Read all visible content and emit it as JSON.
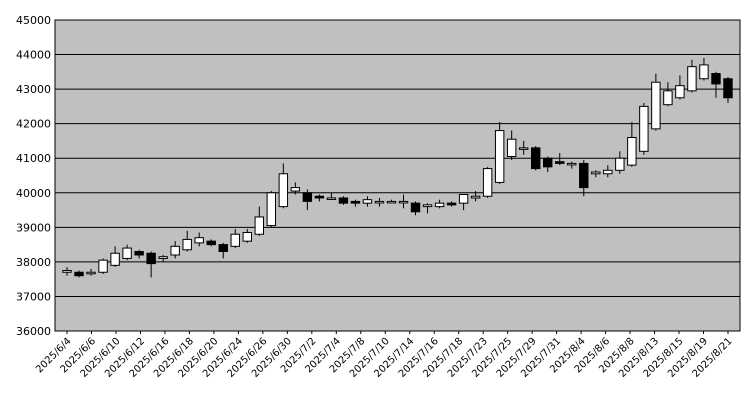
{
  "chart_data": {
    "type": "candlestick",
    "title": "",
    "xlabel": "",
    "ylabel": "",
    "ylim": [
      36000,
      45000
    ],
    "y_ticks": [
      36000,
      37000,
      38000,
      39000,
      40000,
      41000,
      42000,
      43000,
      44000,
      45000
    ],
    "grid": "horizontal",
    "legend": "none",
    "colors": {
      "plot_background": "#c0c0c0",
      "up_body": "#ffffff",
      "down_body": "#000000",
      "wick": "#000000",
      "gridline": "#000000"
    },
    "x_tick_labels": [
      "2025/6/4",
      "2025/6/6",
      "2025/6/10",
      "2025/6/12",
      "2025/6/16",
      "2025/6/18",
      "2025/6/20",
      "2025/6/24",
      "2025/6/26",
      "2025/6/30",
      "2025/7/2",
      "2025/7/4",
      "2025/7/8",
      "2025/7/10",
      "2025/7/14",
      "2025/7/16",
      "2025/7/18",
      "2025/7/23",
      "2025/7/25",
      "2025/7/29",
      "2025/7/31",
      "2025/8/4",
      "2025/8/6",
      "2025/8/8",
      "2025/8/13",
      "2025/8/15",
      "2025/8/19",
      "2025/8/21"
    ],
    "candles": [
      {
        "open": 37700,
        "high": 37850,
        "low": 37600,
        "close": 37750
      },
      {
        "open": 37700,
        "high": 37750,
        "low": 37550,
        "close": 37600
      },
      {
        "open": 37700,
        "high": 37800,
        "low": 37600,
        "close": 37700
      },
      {
        "open": 37700,
        "high": 38100,
        "low": 37650,
        "close": 38050
      },
      {
        "open": 37900,
        "high": 38450,
        "low": 37850,
        "close": 38250
      },
      {
        "open": 38100,
        "high": 38500,
        "low": 38050,
        "close": 38400
      },
      {
        "open": 38300,
        "high": 38350,
        "low": 38100,
        "close": 38200
      },
      {
        "open": 38250,
        "high": 38300,
        "low": 37550,
        "close": 37950
      },
      {
        "open": 38100,
        "high": 38200,
        "low": 38000,
        "close": 38150
      },
      {
        "open": 38200,
        "high": 38600,
        "low": 38100,
        "close": 38450
      },
      {
        "open": 38350,
        "high": 38900,
        "low": 38300,
        "close": 38650
      },
      {
        "open": 38550,
        "high": 38850,
        "low": 38450,
        "close": 38700
      },
      {
        "open": 38600,
        "high": 38650,
        "low": 38450,
        "close": 38500
      },
      {
        "open": 38500,
        "high": 38550,
        "low": 38100,
        "close": 38300
      },
      {
        "open": 38450,
        "high": 38950,
        "low": 38400,
        "close": 38800
      },
      {
        "open": 38600,
        "high": 38950,
        "low": 38550,
        "close": 38850
      },
      {
        "open": 38800,
        "high": 39600,
        "low": 38750,
        "close": 39300
      },
      {
        "open": 39050,
        "high": 40050,
        "low": 39000,
        "close": 40000
      },
      {
        "open": 39600,
        "high": 40850,
        "low": 39550,
        "close": 40550
      },
      {
        "open": 40050,
        "high": 40300,
        "low": 39950,
        "close": 40150
      },
      {
        "open": 40000,
        "high": 40100,
        "low": 39500,
        "close": 39750
      },
      {
        "open": 39900,
        "high": 39950,
        "low": 39750,
        "close": 39850
      },
      {
        "open": 39850,
        "high": 40000,
        "low": 39800,
        "close": 39850
      },
      {
        "open": 39850,
        "high": 39900,
        "low": 39650,
        "close": 39700
      },
      {
        "open": 39750,
        "high": 39800,
        "low": 39600,
        "close": 39700
      },
      {
        "open": 39700,
        "high": 39900,
        "low": 39600,
        "close": 39800
      },
      {
        "open": 39750,
        "high": 39850,
        "low": 39600,
        "close": 39750
      },
      {
        "open": 39750,
        "high": 39800,
        "low": 39700,
        "close": 39750
      },
      {
        "open": 39750,
        "high": 39950,
        "low": 39550,
        "close": 39750
      },
      {
        "open": 39700,
        "high": 39750,
        "low": 39350,
        "close": 39450
      },
      {
        "open": 39600,
        "high": 39700,
        "low": 39400,
        "close": 39650
      },
      {
        "open": 39600,
        "high": 39800,
        "low": 39550,
        "close": 39700
      },
      {
        "open": 39700,
        "high": 39750,
        "low": 39600,
        "close": 39650
      },
      {
        "open": 39700,
        "high": 39950,
        "low": 39500,
        "close": 39950
      },
      {
        "open": 39850,
        "high": 40050,
        "low": 39750,
        "close": 39900
      },
      {
        "open": 39900,
        "high": 40750,
        "low": 39850,
        "close": 40700
      },
      {
        "open": 40300,
        "high": 42050,
        "low": 40250,
        "close": 41800
      },
      {
        "open": 41050,
        "high": 41800,
        "low": 40950,
        "close": 41550
      },
      {
        "open": 41300,
        "high": 41500,
        "low": 41100,
        "close": 41300
      },
      {
        "open": 41300,
        "high": 41350,
        "low": 40650,
        "close": 40700
      },
      {
        "open": 41000,
        "high": 41050,
        "low": 40600,
        "close": 40750
      },
      {
        "open": 40900,
        "high": 41150,
        "low": 40800,
        "close": 40850
      },
      {
        "open": 40850,
        "high": 40900,
        "low": 40700,
        "close": 40850
      },
      {
        "open": 40850,
        "high": 40950,
        "low": 39900,
        "close": 40150
      },
      {
        "open": 40550,
        "high": 40650,
        "low": 40450,
        "close": 40600
      },
      {
        "open": 40550,
        "high": 40800,
        "low": 40450,
        "close": 40650
      },
      {
        "open": 40650,
        "high": 41200,
        "low": 40550,
        "close": 41000
      },
      {
        "open": 40800,
        "high": 42050,
        "low": 40750,
        "close": 41600
      },
      {
        "open": 41200,
        "high": 42600,
        "low": 41100,
        "close": 42500
      },
      {
        "open": 41850,
        "high": 43450,
        "low": 41800,
        "close": 43200
      },
      {
        "open": 42550,
        "high": 43200,
        "low": 42500,
        "close": 42950
      },
      {
        "open": 42750,
        "high": 43400,
        "low": 42700,
        "close": 43100
      },
      {
        "open": 42950,
        "high": 43850,
        "low": 42900,
        "close": 43650
      },
      {
        "open": 43300,
        "high": 43900,
        "low": 43250,
        "close": 43700
      },
      {
        "open": 43450,
        "high": 43500,
        "low": 42750,
        "close": 43150
      },
      {
        "open": 43300,
        "high": 43350,
        "low": 42600,
        "close": 42750
      }
    ]
  }
}
